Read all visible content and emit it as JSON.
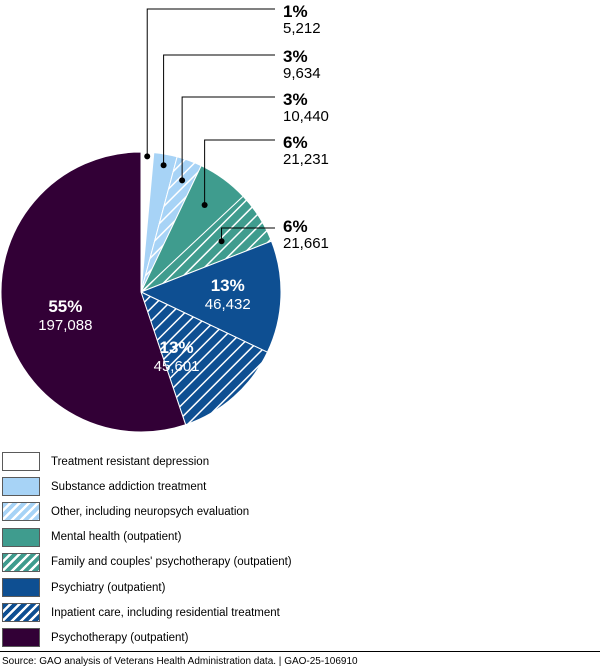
{
  "chart_data": {
    "type": "pie",
    "slices": [
      {
        "label": "Treatment resistant depression",
        "percent_label": "1%",
        "value": 5212,
        "value_label": "5,212",
        "color": "#ffffff",
        "pattern": "none"
      },
      {
        "label": "Substance addiction treatment",
        "percent_label": "3%",
        "value": 9634,
        "value_label": "9,634",
        "color": "#a7d3f6",
        "pattern": "none"
      },
      {
        "label": "Other, including neuropsych evaluation",
        "percent_label": "3%",
        "value": 10440,
        "value_label": "10,440",
        "color": "#a7d3f6",
        "pattern": "white-diagonal-hatch"
      },
      {
        "label": "Mental health (outpatient)",
        "percent_label": "6%",
        "value": 21231,
        "value_label": "21,231",
        "color": "#3f9c8e",
        "pattern": "none"
      },
      {
        "label": "Family and couples' psychotherapy (outpatient)",
        "percent_label": "6%",
        "value": 21661,
        "value_label": "21,661",
        "color": "#3f9c8e",
        "pattern": "white-diagonal-hatch"
      },
      {
        "label": "Psychiatry (outpatient)",
        "percent_label": "13%",
        "value": 46432,
        "value_label": "46,432",
        "color": "#0e4f92",
        "pattern": "none"
      },
      {
        "label": "Inpatient care, including residential treatment",
        "percent_label": "13%",
        "value": 45601,
        "value_label": "45,601",
        "color": "#0e4f92",
        "pattern": "white-diagonal-hatch"
      },
      {
        "label": "Psychotherapy (outpatient)",
        "percent_label": "55%",
        "value": 197088,
        "value_label": "197,088",
        "color": "#320036",
        "pattern": "none"
      }
    ],
    "start_angle": "12 o'clock",
    "direction": "clockwise",
    "legend_position": "bottom"
  },
  "source_note": "Source: GAO analysis of Veterans Health Administration data.  |  GAO-25-106910"
}
